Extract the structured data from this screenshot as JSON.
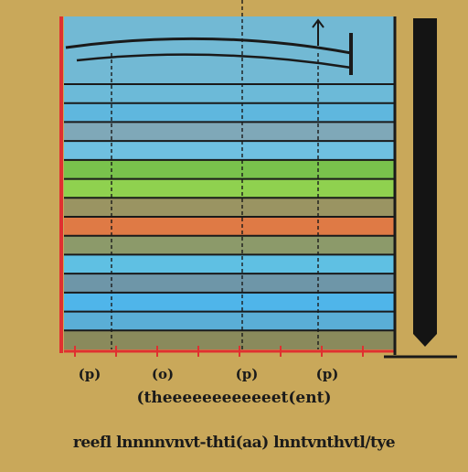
{
  "chart_data": {
    "type": "bar",
    "orientation": "horizontal",
    "bands": [
      {
        "color": "#6cbad8"
      },
      {
        "color": "#5fb7de"
      },
      {
        "color": "#7fa8b8"
      },
      {
        "color": "#6fc0e0"
      },
      {
        "color": "#79c24c"
      },
      {
        "color": "#8fd14f"
      },
      {
        "color": "#9a9462"
      },
      {
        "color": "#df7a45"
      },
      {
        "color": "#8c9a6a"
      },
      {
        "color": "#5fc0e3"
      },
      {
        "color": "#6e96a8"
      },
      {
        "color": "#4fb5ea"
      },
      {
        "color": "#5aaed6"
      },
      {
        "color": "#8a8a5c"
      }
    ],
    "x_ticks": [
      "(p)",
      "(o)",
      "(p)",
      "(p)"
    ],
    "xlabel": "(theeeeeeeeeeeet(ent)",
    "caption": "reefl lnnnnvnvt-thti(aa) lnntvnthvtl/tye",
    "grid": true,
    "legend": "right"
  },
  "colors": {
    "background": "#c9a85a",
    "axis_red": "#e03030",
    "frame_dark": "#1a1a1a",
    "legend_dark": "#141414"
  }
}
